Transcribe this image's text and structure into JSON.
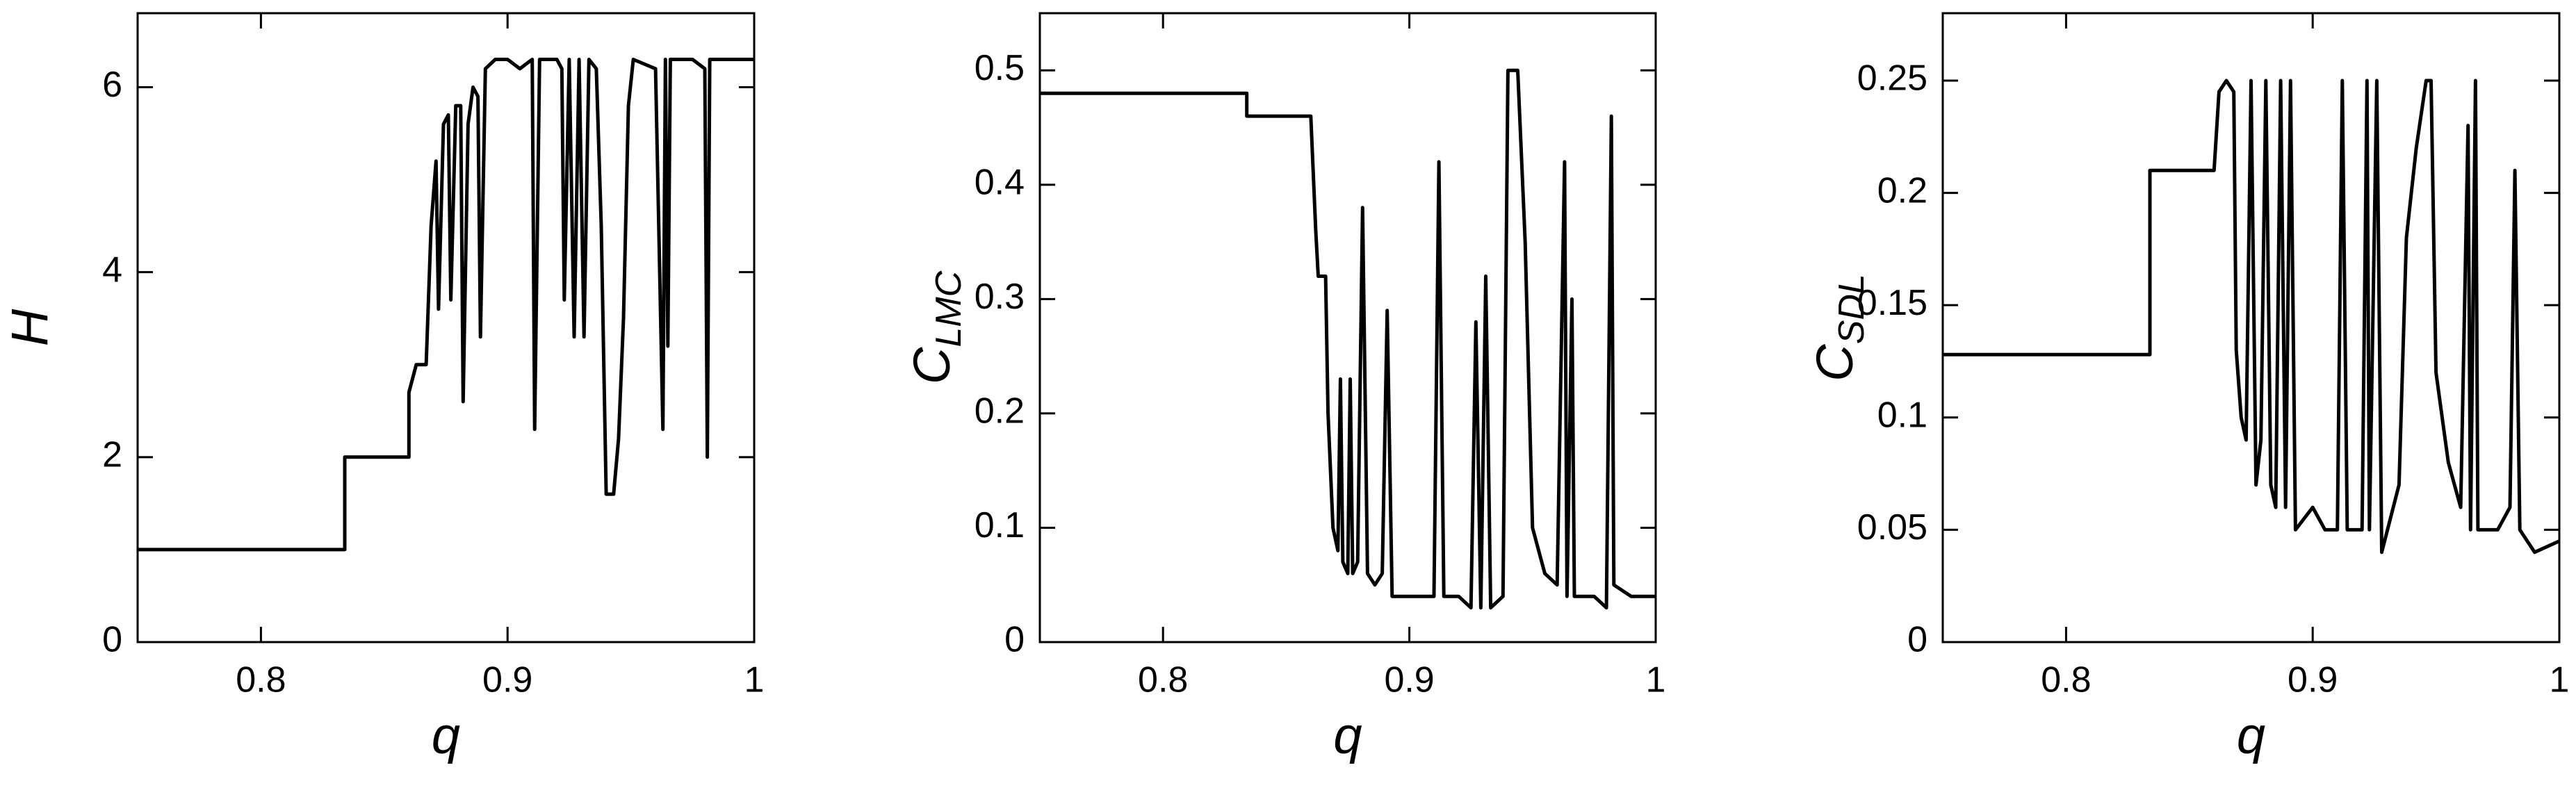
{
  "chart_data": [
    {
      "type": "line",
      "xlabel": "q",
      "ylabel": "H",
      "color": "#000000",
      "xlim": [
        0.75,
        1
      ],
      "xticks": [
        0.8,
        0.9,
        1
      ],
      "ylim": [
        0,
        6.8
      ],
      "yticks": [
        0,
        2,
        4,
        6
      ],
      "x": [
        0.75,
        0.834,
        0.834,
        0.86,
        0.86,
        0.863,
        0.867,
        0.869,
        0.871,
        0.872,
        0.874,
        0.876,
        0.877,
        0.879,
        0.881,
        0.882,
        0.884,
        0.886,
        0.888,
        0.889,
        0.891,
        0.895,
        0.9,
        0.905,
        0.91,
        0.911,
        0.913,
        0.92,
        0.922,
        0.923,
        0.925,
        0.927,
        0.929,
        0.931,
        0.933,
        0.936,
        0.938,
        0.94,
        0.943,
        0.945,
        0.947,
        0.949,
        0.951,
        0.96,
        0.963,
        0.964,
        0.965,
        0.966,
        0.975,
        0.98,
        0.981,
        0.982,
        0.99,
        1
      ],
      "values": [
        1,
        1,
        2,
        2,
        2.7,
        3.0,
        3.0,
        4.5,
        5.2,
        3.6,
        5.6,
        5.7,
        3.7,
        5.8,
        5.8,
        2.6,
        5.6,
        6.0,
        5.9,
        3.3,
        6.2,
        6.3,
        6.3,
        6.2,
        6.3,
        2.3,
        6.3,
        6.3,
        6.2,
        3.7,
        6.3,
        3.3,
        6.3,
        3.3,
        6.3,
        6.2,
        4.5,
        1.6,
        1.6,
        2.2,
        3.5,
        5.8,
        6.3,
        6.2,
        2.3,
        6.3,
        3.2,
        6.3,
        6.3,
        6.2,
        2.0,
        6.3,
        6.3,
        6.3
      ]
    },
    {
      "type": "line",
      "xlabel": "q",
      "ylabel": "C",
      "ylabel_sub": "LMC",
      "color": "#000000",
      "xlim": [
        0.75,
        1
      ],
      "xticks": [
        0.8,
        0.9,
        1
      ],
      "ylim": [
        0,
        0.55
      ],
      "yticks": [
        0,
        0.1,
        0.2,
        0.3,
        0.4,
        0.5
      ],
      "x": [
        0.75,
        0.834,
        0.834,
        0.86,
        0.862,
        0.863,
        0.866,
        0.867,
        0.869,
        0.871,
        0.872,
        0.873,
        0.875,
        0.876,
        0.877,
        0.879,
        0.881,
        0.883,
        0.886,
        0.889,
        0.891,
        0.893,
        0.9,
        0.905,
        0.91,
        0.912,
        0.914,
        0.92,
        0.925,
        0.927,
        0.929,
        0.931,
        0.933,
        0.938,
        0.94,
        0.944,
        0.947,
        0.95,
        0.955,
        0.96,
        0.963,
        0.964,
        0.966,
        0.967,
        0.975,
        0.98,
        0.982,
        0.983,
        0.99,
        1
      ],
      "values": [
        0.48,
        0.48,
        0.46,
        0.46,
        0.36,
        0.32,
        0.32,
        0.2,
        0.1,
        0.08,
        0.23,
        0.07,
        0.06,
        0.23,
        0.06,
        0.07,
        0.38,
        0.06,
        0.05,
        0.06,
        0.29,
        0.04,
        0.04,
        0.04,
        0.04,
        0.42,
        0.04,
        0.04,
        0.03,
        0.28,
        0.03,
        0.32,
        0.03,
        0.04,
        0.5,
        0.5,
        0.35,
        0.1,
        0.06,
        0.05,
        0.42,
        0.04,
        0.3,
        0.04,
        0.04,
        0.03,
        0.46,
        0.05,
        0.04,
        0.04
      ]
    },
    {
      "type": "line",
      "xlabel": "q",
      "ylabel": "C",
      "ylabel_sub": "SDL",
      "color": "#000000",
      "xlim": [
        0.75,
        1
      ],
      "xticks": [
        0.8,
        0.9,
        1
      ],
      "ylim": [
        0,
        0.28
      ],
      "yticks": [
        0,
        0.05,
        0.1,
        0.15,
        0.2,
        0.25
      ],
      "x": [
        0.75,
        0.834,
        0.834,
        0.86,
        0.862,
        0.865,
        0.868,
        0.869,
        0.871,
        0.873,
        0.875,
        0.877,
        0.879,
        0.881,
        0.883,
        0.885,
        0.887,
        0.889,
        0.891,
        0.893,
        0.9,
        0.905,
        0.91,
        0.912,
        0.914,
        0.92,
        0.922,
        0.923,
        0.926,
        0.928,
        0.935,
        0.938,
        0.942,
        0.946,
        0.948,
        0.95,
        0.955,
        0.96,
        0.963,
        0.964,
        0.966,
        0.967,
        0.975,
        0.98,
        0.982,
        0.984,
        0.99,
        1
      ],
      "values": [
        0.128,
        0.128,
        0.21,
        0.21,
        0.245,
        0.25,
        0.245,
        0.13,
        0.1,
        0.09,
        0.25,
        0.07,
        0.09,
        0.25,
        0.07,
        0.06,
        0.25,
        0.06,
        0.25,
        0.05,
        0.06,
        0.05,
        0.05,
        0.25,
        0.05,
        0.05,
        0.25,
        0.05,
        0.25,
        0.04,
        0.07,
        0.18,
        0.22,
        0.25,
        0.25,
        0.12,
        0.08,
        0.06,
        0.23,
        0.05,
        0.25,
        0.05,
        0.05,
        0.06,
        0.21,
        0.05,
        0.04,
        0.045
      ]
    }
  ]
}
